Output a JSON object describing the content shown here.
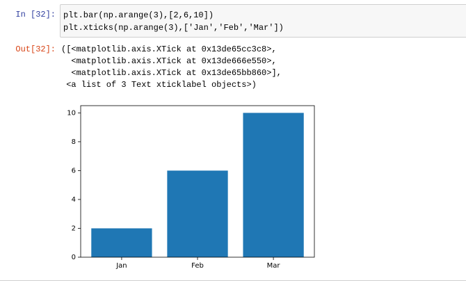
{
  "cell": {
    "in_prompt": "In [32]:",
    "code": [
      "plt.bar(np.arange(3),[2,6,10])",
      "plt.xticks(np.arange(3),['Jan','Feb','Mar'])"
    ],
    "out_prompt": "Out[32]:",
    "output": [
      "([<matplotlib.axis.XTick at 0x13de65cc3c8>,",
      "  <matplotlib.axis.XTick at 0x13de666e550>,",
      "  <matplotlib.axis.XTick at 0x13de65bb860>],",
      " <a list of 3 Text xticklabel objects>)"
    ]
  },
  "chart_data": {
    "type": "bar",
    "categories": [
      "Jan",
      "Feb",
      "Mar"
    ],
    "values": [
      2,
      6,
      10
    ],
    "color": "#1f77b4",
    "ylim": [
      0,
      10.5
    ],
    "yticks": [
      0,
      2,
      4,
      6,
      8,
      10
    ]
  }
}
